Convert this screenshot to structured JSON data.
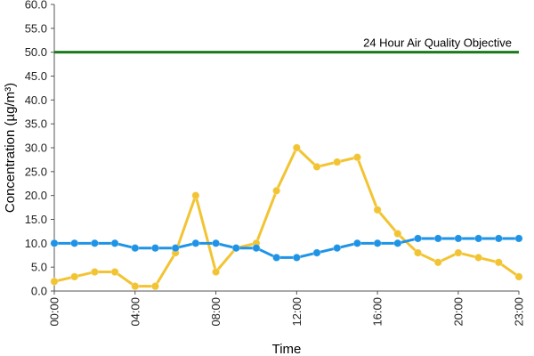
{
  "chart_data": {
    "type": "line",
    "xlabel": "Time",
    "ylabel": "Concentration (µg/m³)",
    "ylim": [
      0,
      60
    ],
    "y_ticks": [
      "0.0",
      "5.0",
      "10.0",
      "15.0",
      "20.0",
      "25.0",
      "30.0",
      "35.0",
      "40.0",
      "45.0",
      "50.0",
      "55.0",
      "60.0"
    ],
    "x": [
      "00:00",
      "01:00",
      "02:00",
      "03:00",
      "04:00",
      "05:00",
      "06:00",
      "07:00",
      "08:00",
      "09:00",
      "10:00",
      "11:00",
      "12:00",
      "13:00",
      "14:00",
      "15:00",
      "16:00",
      "17:00",
      "18:00",
      "19:00",
      "20:00",
      "21:00",
      "22:00",
      "23:00"
    ],
    "x_tick_labels": [
      "00:00",
      "04:00",
      "08:00",
      "12:00",
      "16:00",
      "20:00",
      "23:00"
    ],
    "grid": false,
    "series": [
      {
        "color": "#f2c433",
        "values": [
          2,
          3,
          4,
          4,
          1,
          1,
          8,
          20,
          4,
          9,
          10,
          21,
          30,
          26,
          27,
          28,
          17,
          12,
          8,
          6,
          8,
          7,
          6,
          3
        ]
      },
      {
        "color": "#1f93e6",
        "values": [
          10,
          10,
          10,
          10,
          9,
          9,
          9,
          10,
          10,
          9,
          9,
          7,
          7,
          8,
          9,
          10,
          10,
          10,
          11,
          11,
          11,
          11,
          11,
          11
        ]
      }
    ],
    "reference_line": {
      "value": 50,
      "label": "24 Hour Air Quality Objective",
      "color": "#1b7a1b"
    }
  }
}
